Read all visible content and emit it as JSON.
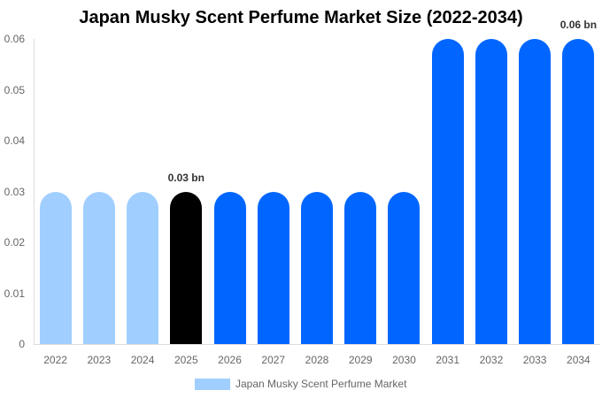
{
  "chart_data": {
    "type": "bar",
    "title": "Japan Musky Scent Perfume Market Size (2022-2034)",
    "xlabel": "",
    "ylabel": "",
    "ylim": [
      0,
      0.06
    ],
    "yticks": [
      "0",
      "0.01",
      "0.02",
      "0.03",
      "0.04",
      "0.05",
      "0.06"
    ],
    "categories": [
      "2022",
      "2023",
      "2024",
      "2025",
      "2026",
      "2027",
      "2028",
      "2029",
      "2030",
      "2031",
      "2032",
      "2033",
      "2034"
    ],
    "series": [
      {
        "name": "Japan Musky Scent Perfume Market",
        "values": [
          0.03,
          0.03,
          0.03,
          0.03,
          0.03,
          0.03,
          0.03,
          0.03,
          0.03,
          0.06,
          0.06,
          0.06,
          0.06
        ]
      }
    ],
    "bar_colors": [
      "#a0cfff",
      "#a0cfff",
      "#a0cfff",
      "#000000",
      "#0066ff",
      "#0066ff",
      "#0066ff",
      "#0066ff",
      "#0066ff",
      "#0066ff",
      "#0066ff",
      "#0066ff",
      "#0066ff"
    ],
    "annotations": [
      {
        "category": "2025",
        "text": "0.03 bn"
      },
      {
        "category": "2034",
        "text": "0.06 bn"
      }
    ],
    "legend": {
      "position": "bottom",
      "entries": [
        "Japan Musky Scent Perfume Market"
      ]
    },
    "grid": false
  }
}
